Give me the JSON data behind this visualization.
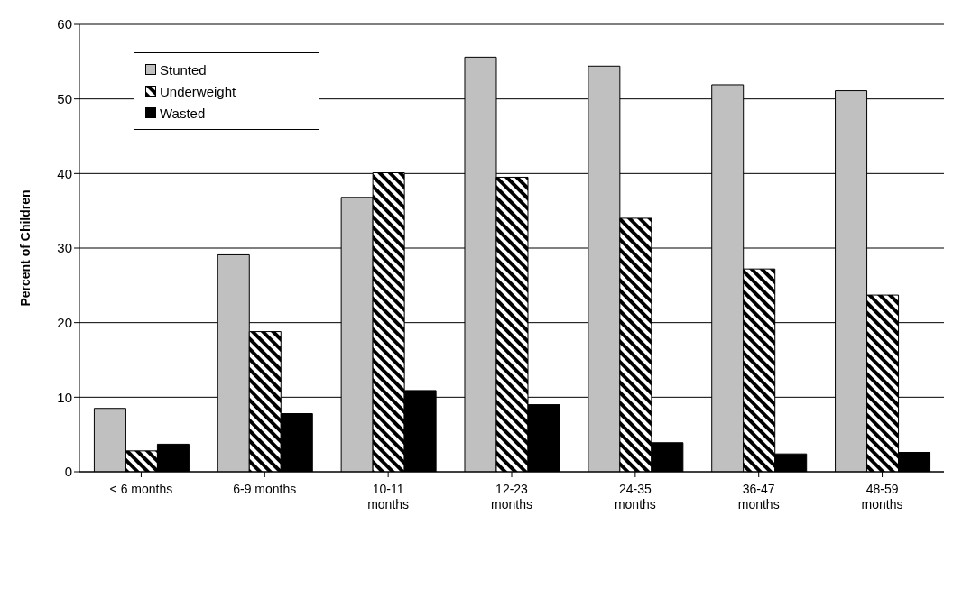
{
  "chart_data": {
    "type": "bar",
    "ylabel": "Percent of Children",
    "categories": [
      "< 6 months",
      "6-9 months",
      "10-11 months",
      "12-23 months",
      "24-35 months",
      "36-47 months",
      "48-59 months"
    ],
    "series": [
      {
        "name": "Stunted",
        "color": "#c0c0c0",
        "values": [
          8.5,
          29.1,
          36.8,
          55.6,
          54.4,
          51.9,
          51.1
        ]
      },
      {
        "name": "Underweight",
        "color": "#000000",
        "values": [
          2.8,
          18.8,
          40.1,
          39.5,
          34.0,
          27.2,
          23.7
        ]
      },
      {
        "name": "Wasted",
        "color": "#000000",
        "values": [
          3.7,
          7.8,
          10.9,
          9.0,
          3.9,
          2.4,
          2.6
        ]
      }
    ],
    "ylim": [
      0,
      60
    ],
    "yticks": [
      0,
      10,
      20,
      30,
      40,
      50,
      60
    ],
    "grid": "y",
    "legend": "top left"
  }
}
